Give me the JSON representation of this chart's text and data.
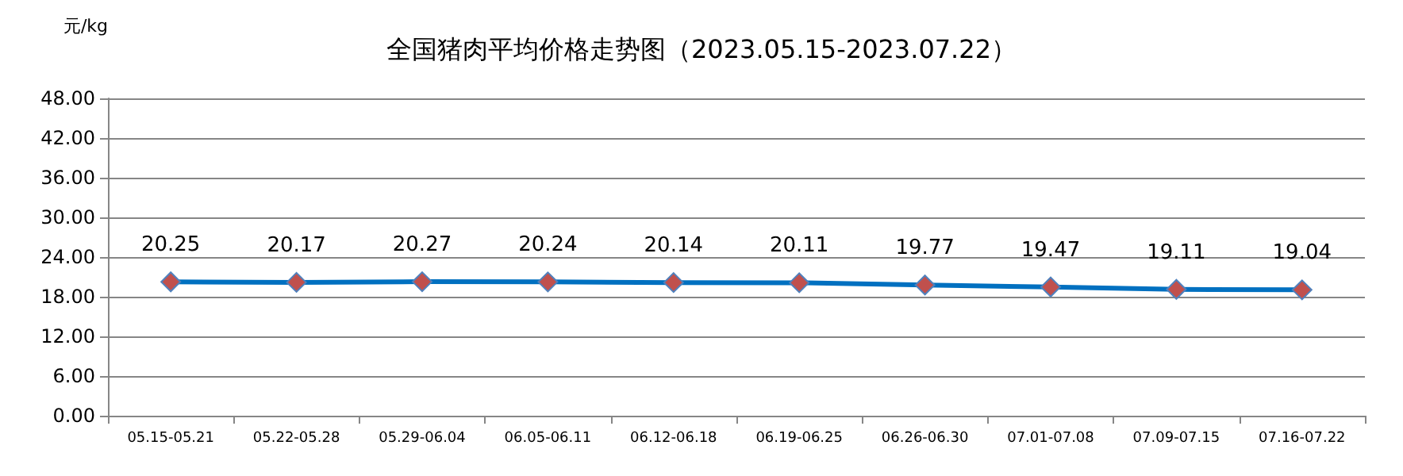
{
  "chart_data": {
    "type": "line",
    "title": "全国猪肉平均价格走势图（2023.05.15-2023.07.22）",
    "ylabel": "元/kg",
    "categories": [
      "05.15-05.21",
      "05.22-05.28",
      "05.29-06.04",
      "06.05-06.11",
      "06.12-06.18",
      "06.19-06.25",
      "06.26-06.30",
      "07.01-07.08",
      "07.09-07.15",
      "07.16-07.22"
    ],
    "series": [
      {
        "color": "#0070c0",
        "colors": [
          "#c0504d",
          "#c0504d",
          "#c0504d",
          "#c0504d",
          "#c0504d",
          "#c0504d",
          "#c0504d",
          "#c0504d",
          "#c0504d",
          "#c0504d"
        ],
        "values": [
          20.25,
          20.17,
          20.27,
          20.24,
          20.14,
          20.11,
          19.77,
          19.47,
          19.11,
          19.04
        ]
      }
    ],
    "ylim": [
      0,
      48
    ],
    "yticks": [
      {
        "value": 0,
        "label": "0.00"
      },
      {
        "value": 6,
        "label": "6.00"
      },
      {
        "value": 12,
        "label": "12.00"
      },
      {
        "value": 18,
        "label": "18.00"
      },
      {
        "value": 24,
        "label": "24.00"
      },
      {
        "value": 30,
        "label": "30.00"
      },
      {
        "value": 36,
        "label": "36.00"
      },
      {
        "value": 42,
        "label": "42.00"
      },
      {
        "value": 48,
        "label": "48.00"
      }
    ],
    "grid": "y",
    "marker": "diamond",
    "line_style": "solid",
    "data_labels": true
  }
}
